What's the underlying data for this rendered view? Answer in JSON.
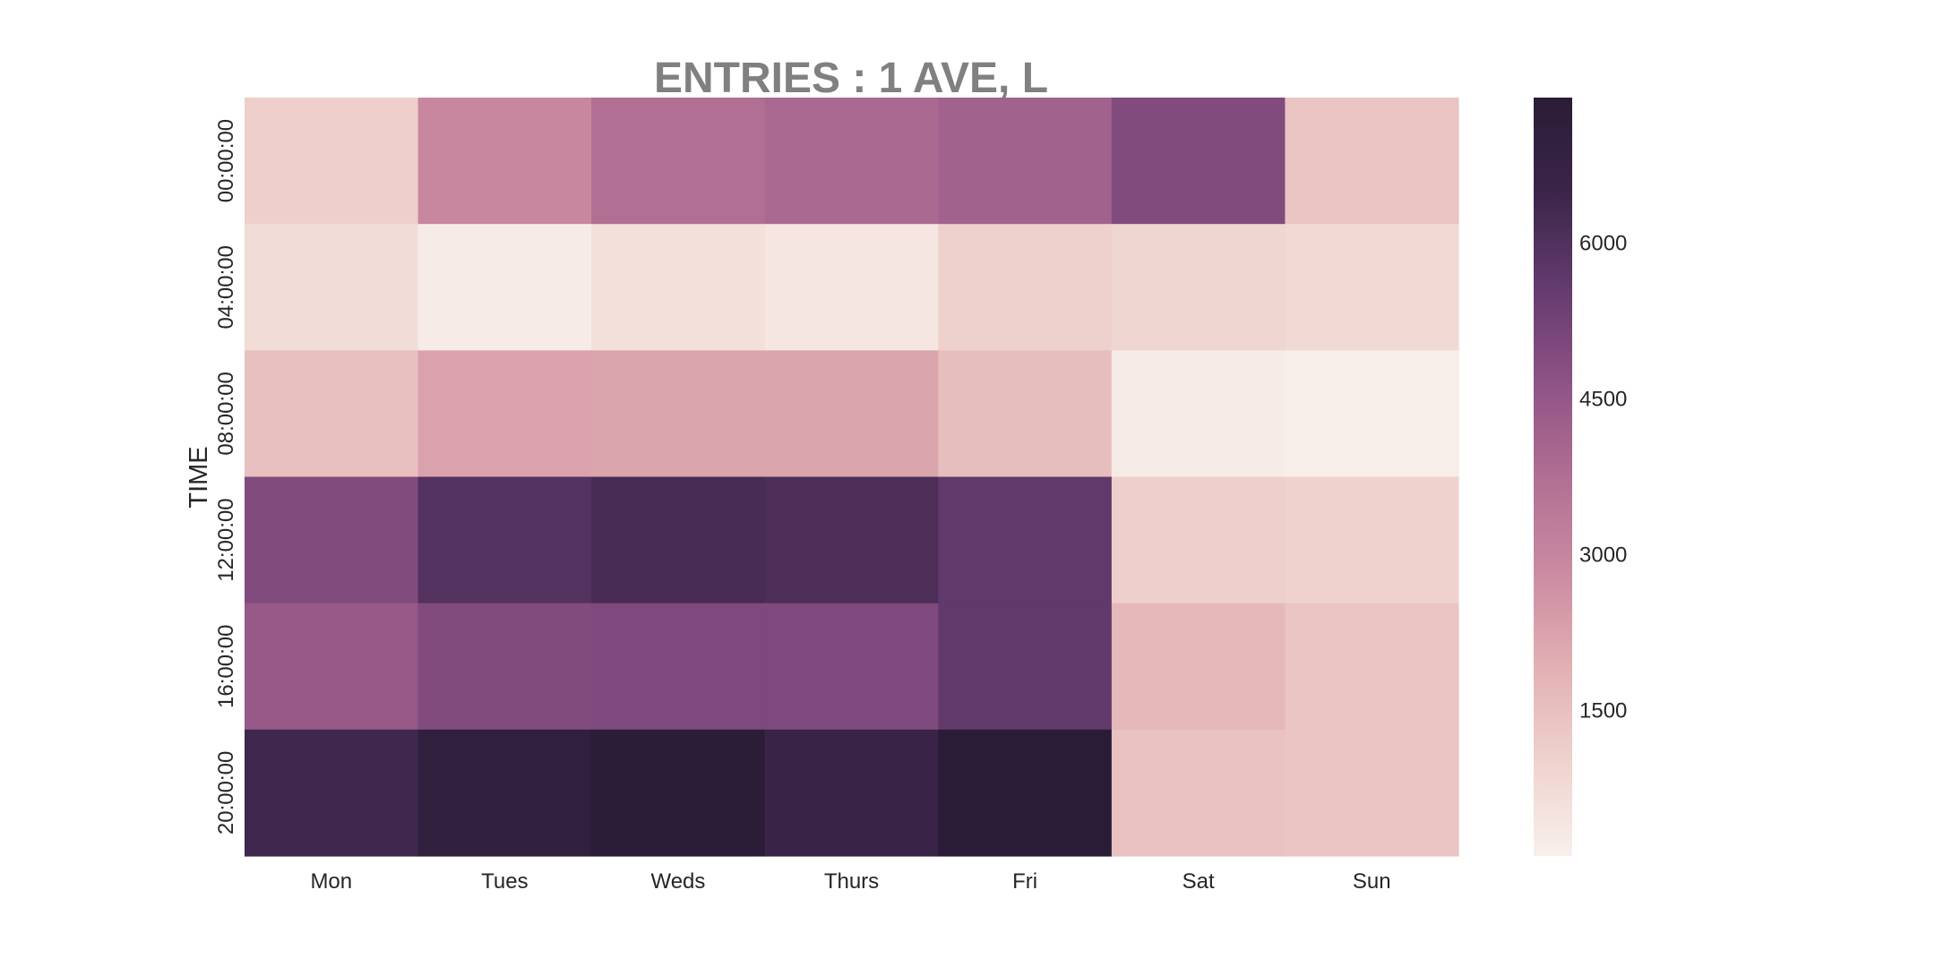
{
  "chart_data": {
    "type": "heatmap",
    "title": "ENTRIES : 1 AVE, L",
    "xlabel": "",
    "ylabel": "TIME",
    "x_categories": [
      "Mon",
      "Tues",
      "Weds",
      "Thurs",
      "Fri",
      "Sat",
      "Sun"
    ],
    "y_categories": [
      "00:00:00",
      "04:00:00",
      "08:00:00",
      "12:00:00",
      "16:00:00",
      "20:00:00"
    ],
    "values": [
      [
        1100,
        2950,
        3750,
        3950,
        4150,
        4950,
        1350
      ],
      [
        700,
        250,
        600,
        400,
        1050,
        900,
        800
      ],
      [
        1500,
        2250,
        2200,
        2200,
        1550,
        250,
        200
      ],
      [
        4950,
        5950,
        6200,
        6100,
        5650,
        1100,
        1000
      ],
      [
        4450,
        4950,
        5000,
        5000,
        5650,
        1700,
        1350
      ],
      [
        6400,
        7100,
        7350,
        6600,
        7400,
        1450,
        1350
      ]
    ],
    "colorbar": {
      "ticks": [
        1500,
        3000,
        4500,
        6000
      ],
      "vmin": 100,
      "vmax": 7400,
      "colormap": "cubehelix-light",
      "color_stops": [
        "#f8f0ec",
        "#efd2cd",
        "#e2b0b3",
        "#cb8aa1",
        "#b06f93",
        "#8e5285",
        "#643b6e",
        "#3b2549",
        "#2a1c37"
      ]
    },
    "grid": false,
    "legend": "colorbar-right"
  }
}
